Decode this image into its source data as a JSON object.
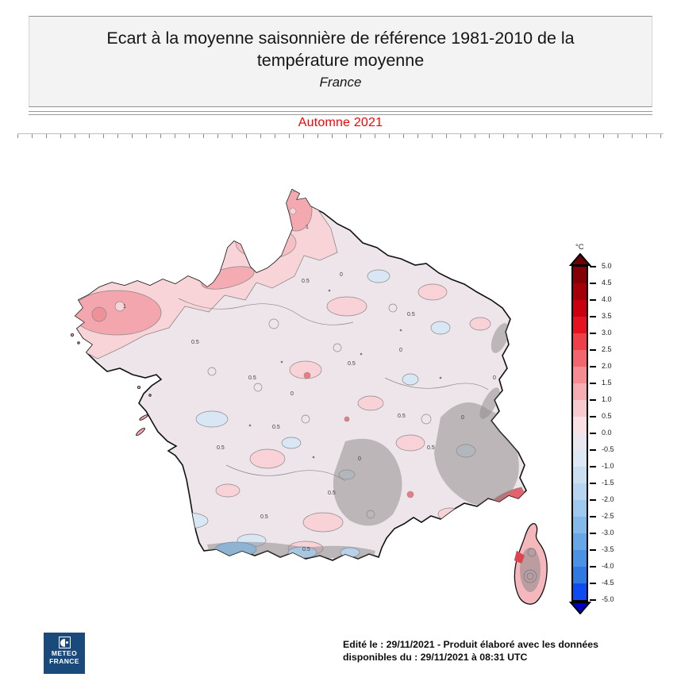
{
  "header": {
    "title": "Ecart à la moyenne saisonnière de référence 1981-2010 de la température moyenne",
    "subtitle": "France",
    "season": "Automne 2021",
    "season_color": "#ff0000"
  },
  "legend": {
    "unit": "°C",
    "ticks": [
      "5.0",
      "4.5",
      "4.0",
      "3.5",
      "3.0",
      "2.5",
      "2.0",
      "1.5",
      "1.0",
      "0.5",
      "0.0",
      "-0.5",
      "-1.0",
      "-1.5",
      "-2.0",
      "-2.5",
      "-3.0",
      "-3.5",
      "-4.0",
      "-4.5",
      "-5.0"
    ],
    "colors": [
      "#850006",
      "#A3000A",
      "#C80010",
      "#E51220",
      "#EF3F48",
      "#F2666E",
      "#F48C92",
      "#F5ACB2",
      "#F8C9CE",
      "#FAE1E4",
      "#EAE7F0",
      "#DCE8F4",
      "#CBDFF2",
      "#B7D5F0",
      "#9FC8EE",
      "#84B9EB",
      "#67A7E8",
      "#4B92E5",
      "#2F79E2",
      "#0E4BF0"
    ],
    "arrow_top_color": "#6E0005",
    "arrow_bottom_color": "#0000C4"
  },
  "map": {
    "base_color": "#EDE5EA",
    "palette": {
      "anomaly_0_05": "#EDE5EA",
      "anomaly_05_1": "#F8D2D7",
      "anomaly_1_15": "#F3A6AD",
      "anomaly_15_2": "#EF9199",
      "anomaly_neg": "#D9E7F4",
      "anomaly_neg_strong": "#8FB4D2",
      "anomaly_hot_coast": "#E2636C",
      "relief_shading": "#8C8888",
      "coastline": "#111111",
      "contour": "#8a8a8a"
    },
    "contour_label_values": {
      "half": "0.5",
      "zero": "0",
      "one": "1"
    }
  },
  "footer": {
    "logo_line1": "METEO",
    "logo_line2": "FRANCE",
    "logo_bg": "#1a4a7c",
    "caption_line1": "Edité le : 29/11/2021 - Produit élaboré avec les données",
    "caption_line2": "disponibles du : 29/11/2021 à 08:31 UTC"
  },
  "chart_data": {
    "type": "map",
    "region": "France",
    "title": "Ecart à la moyenne saisonnière de référence 1981-2010 de la température moyenne",
    "season": "Automne 2021",
    "unit": "°C",
    "scale_min": -5.0,
    "scale_max": 5.0,
    "scale_step": 0.5,
    "legend_position": "right",
    "notes_visible_on_map": "Anomalies mostly between 0 and +1.5 °C (pink/pale), locally -0.5 to -1.5 °C (blue patches, Pyrénées), relief shaded grey over Alps, Massif Central, Pyrénées and Corsica"
  }
}
